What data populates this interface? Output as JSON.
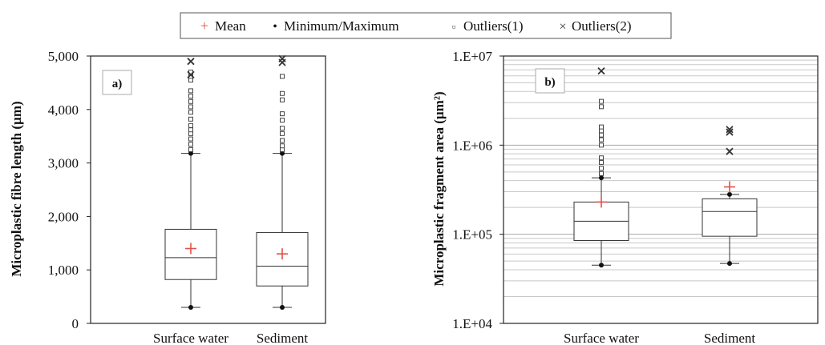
{
  "legend": {
    "items": [
      {
        "symbol": "+",
        "label": "Mean",
        "color": "#e0504a"
      },
      {
        "symbol": "•",
        "label": "Minimum/Maximum",
        "color": "#111111"
      },
      {
        "symbol": "▫",
        "label": "Outliers(1)",
        "color": "#555555"
      },
      {
        "symbol": "×",
        "label": "Outliers(2)",
        "color": "#333333"
      }
    ]
  },
  "chart_data": [
    {
      "type": "box",
      "panel_label": "a)",
      "ylabel": "Microplastic fibre length (µm)",
      "ylim": [
        0,
        5000
      ],
      "yticks": [
        0,
        1000,
        2000,
        3000,
        4000,
        5000
      ],
      "ytick_labels": [
        "0",
        "1,000",
        "2,000",
        "3,000",
        "4,000",
        "5,000"
      ],
      "grid": false,
      "categories": [
        "Surface water",
        "Sediment"
      ],
      "boxes": [
        {
          "category": "Surface water",
          "min": 300,
          "q1": 820,
          "median": 1230,
          "q3": 1760,
          "max": 3180,
          "mean": 1400,
          "outliers1": [
            3250,
            3350,
            3450,
            3550,
            3620,
            3700,
            3820,
            3950,
            4050,
            4150,
            4250,
            4350,
            4550,
            4620,
            4700
          ],
          "outliers2": [
            4650,
            4900
          ]
        },
        {
          "category": "Sediment",
          "min": 300,
          "q1": 700,
          "median": 1070,
          "q3": 1700,
          "max": 3180,
          "mean": 1300,
          "outliers1": [
            3250,
            3320,
            3420,
            3550,
            3650,
            3800,
            3920,
            4180,
            4300,
            4620
          ],
          "outliers2": [
            4880,
            4950
          ]
        }
      ]
    },
    {
      "type": "box",
      "panel_label": "b)",
      "ylabel": "Microplastic fragment area (µm²)",
      "yscale": "log",
      "ylim": [
        10000,
        10000000
      ],
      "yticks": [
        10000,
        100000,
        1000000,
        10000000
      ],
      "ytick_labels": [
        "1.E+04",
        "1.E+05",
        "1.E+06",
        "1.E+07"
      ],
      "grid": true,
      "categories": [
        "Surface water",
        "Sediment"
      ],
      "boxes": [
        {
          "category": "Surface water",
          "min": 45000,
          "q1": 85000,
          "median": 140000,
          "q3": 230000,
          "max": 430000,
          "mean": 230000,
          "outliers1": [
            480000,
            550000,
            640000,
            720000,
            1000000,
            1150000,
            1300000,
            1450000,
            1600000,
            2700000,
            3100000
          ],
          "outliers2": [
            6800000
          ]
        },
        {
          "category": "Sediment",
          "min": 47000,
          "q1": 95000,
          "median": 180000,
          "q3": 250000,
          "max": 280000,
          "mean": 340000,
          "outliers1": [],
          "outliers2": [
            850000,
            1400000,
            1500000
          ]
        }
      ]
    }
  ]
}
